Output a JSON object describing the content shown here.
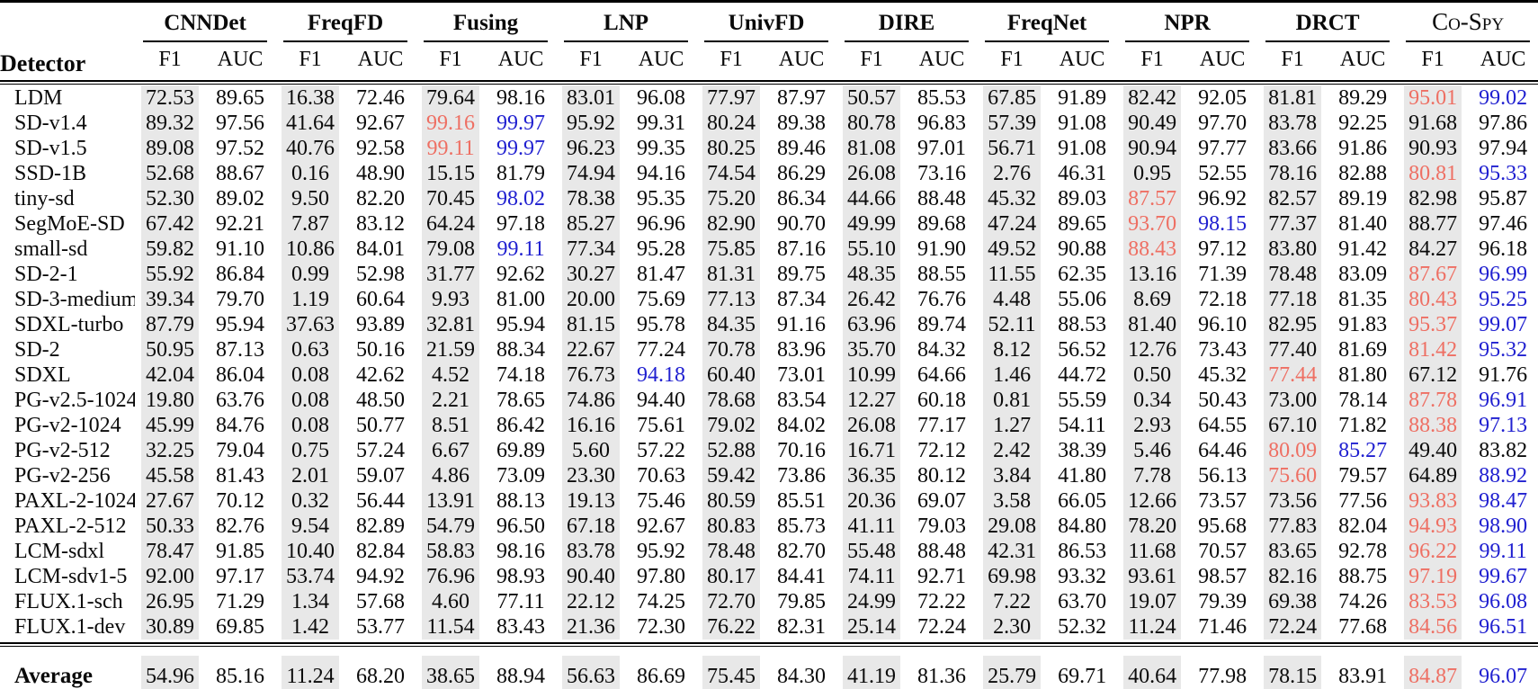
{
  "colors": {
    "best_f1_highlight": "#ee6f63",
    "best_auc_highlight": "#2020d0",
    "f1_column_background": "#e8e8e8"
  },
  "table": {
    "detector_header": "Detector",
    "metric_headers": [
      "F1",
      "AUC"
    ],
    "method_groups": [
      {
        "label": "CNNDet"
      },
      {
        "label": "FreqFD"
      },
      {
        "label": "Fusing"
      },
      {
        "label": "LNP"
      },
      {
        "label": "UnivFD"
      },
      {
        "label": "DIRE"
      },
      {
        "label": "FreqNet"
      },
      {
        "label": "NPR"
      },
      {
        "label": "DRCT"
      },
      {
        "label": "Co-Spy",
        "smallcaps": true
      }
    ],
    "rows": [
      {
        "label": "LDM",
        "values": [
          "72.53",
          "89.65",
          "16.38",
          "72.46",
          "79.64",
          "98.16",
          "83.01",
          "96.08",
          "77.97",
          "87.97",
          "50.57",
          "85.53",
          "67.85",
          "91.89",
          "82.42",
          "92.05",
          "81.81",
          "89.29",
          "95.01",
          "99.02"
        ],
        "red": [
          18
        ],
        "blue": [
          19
        ]
      },
      {
        "label": "SD-v1.4",
        "values": [
          "89.32",
          "97.56",
          "41.64",
          "92.67",
          "99.16",
          "99.97",
          "95.92",
          "99.31",
          "80.24",
          "89.38",
          "80.78",
          "96.83",
          "57.39",
          "91.08",
          "90.49",
          "97.70",
          "83.78",
          "92.25",
          "91.68",
          "97.86"
        ],
        "red": [
          4
        ],
        "blue": [
          5
        ]
      },
      {
        "label": "SD-v1.5",
        "values": [
          "89.08",
          "97.52",
          "40.76",
          "92.58",
          "99.11",
          "99.97",
          "96.23",
          "99.35",
          "80.25",
          "89.46",
          "81.08",
          "97.01",
          "56.71",
          "91.08",
          "90.94",
          "97.77",
          "83.66",
          "91.86",
          "90.93",
          "97.94"
        ],
        "red": [
          4
        ],
        "blue": [
          5
        ]
      },
      {
        "label": "SSD-1B",
        "values": [
          "52.68",
          "88.67",
          "0.16",
          "48.90",
          "15.15",
          "81.79",
          "74.94",
          "94.16",
          "74.54",
          "86.29",
          "26.08",
          "73.16",
          "2.76",
          "46.31",
          "0.95",
          "52.55",
          "78.16",
          "82.88",
          "80.81",
          "95.33"
        ],
        "red": [
          18
        ],
        "blue": [
          19
        ]
      },
      {
        "label": "tiny-sd",
        "values": [
          "52.30",
          "89.02",
          "9.50",
          "82.20",
          "70.45",
          "98.02",
          "78.38",
          "95.35",
          "75.20",
          "86.34",
          "44.66",
          "88.48",
          "45.32",
          "89.03",
          "87.57",
          "96.92",
          "82.57",
          "89.19",
          "82.98",
          "95.87"
        ],
        "red": [
          14
        ],
        "blue": [
          5
        ]
      },
      {
        "label": "SegMoE-SD",
        "values": [
          "67.42",
          "92.21",
          "7.87",
          "83.12",
          "64.24",
          "97.18",
          "85.27",
          "96.96",
          "82.90",
          "90.70",
          "49.99",
          "89.68",
          "47.24",
          "89.65",
          "93.70",
          "98.15",
          "77.37",
          "81.40",
          "88.77",
          "97.46"
        ],
        "red": [
          14
        ],
        "blue": [
          15
        ]
      },
      {
        "label": "small-sd",
        "values": [
          "59.82",
          "91.10",
          "10.86",
          "84.01",
          "79.08",
          "99.11",
          "77.34",
          "95.28",
          "75.85",
          "87.16",
          "55.10",
          "91.90",
          "49.52",
          "90.88",
          "88.43",
          "97.12",
          "83.80",
          "91.42",
          "84.27",
          "96.18"
        ],
        "red": [
          14
        ],
        "blue": [
          5
        ]
      },
      {
        "label": "SD-2-1",
        "values": [
          "55.92",
          "86.84",
          "0.99",
          "52.98",
          "31.77",
          "92.62",
          "30.27",
          "81.47",
          "81.31",
          "89.75",
          "48.35",
          "88.55",
          "11.55",
          "62.35",
          "13.16",
          "71.39",
          "78.48",
          "83.09",
          "87.67",
          "96.99"
        ],
        "red": [
          18
        ],
        "blue": [
          19
        ]
      },
      {
        "label": "SD-3-medium",
        "values": [
          "39.34",
          "79.70",
          "1.19",
          "60.64",
          "9.93",
          "81.00",
          "20.00",
          "75.69",
          "77.13",
          "87.34",
          "26.42",
          "76.76",
          "4.48",
          "55.06",
          "8.69",
          "72.18",
          "77.18",
          "81.35",
          "80.43",
          "95.25"
        ],
        "red": [
          18
        ],
        "blue": [
          19
        ]
      },
      {
        "label": "SDXL-turbo",
        "values": [
          "87.79",
          "95.94",
          "37.63",
          "93.89",
          "32.81",
          "95.94",
          "81.15",
          "95.78",
          "84.35",
          "91.16",
          "63.96",
          "89.74",
          "52.11",
          "88.53",
          "81.40",
          "96.10",
          "82.95",
          "91.83",
          "95.37",
          "99.07"
        ],
        "red": [
          18
        ],
        "blue": [
          19
        ]
      },
      {
        "label": "SD-2",
        "values": [
          "50.95",
          "87.13",
          "0.63",
          "50.16",
          "21.59",
          "88.34",
          "22.67",
          "77.24",
          "70.78",
          "83.96",
          "35.70",
          "84.32",
          "8.12",
          "56.52",
          "12.76",
          "73.43",
          "77.40",
          "81.69",
          "81.42",
          "95.32"
        ],
        "red": [
          18
        ],
        "blue": [
          19
        ]
      },
      {
        "label": "SDXL",
        "values": [
          "42.04",
          "86.04",
          "0.08",
          "42.62",
          "4.52",
          "74.18",
          "76.73",
          "94.18",
          "60.40",
          "73.01",
          "10.99",
          "64.66",
          "1.46",
          "44.72",
          "0.50",
          "45.32",
          "77.44",
          "81.80",
          "67.12",
          "91.76"
        ],
        "red": [
          16
        ],
        "blue": [
          7
        ]
      },
      {
        "label": "PG-v2.5-1024",
        "values": [
          "19.80",
          "63.76",
          "0.08",
          "48.50",
          "2.21",
          "78.65",
          "74.86",
          "94.40",
          "78.68",
          "83.54",
          "12.27",
          "60.18",
          "0.81",
          "55.59",
          "0.34",
          "50.43",
          "73.00",
          "78.14",
          "87.78",
          "96.91"
        ],
        "red": [
          18
        ],
        "blue": [
          19
        ]
      },
      {
        "label": "PG-v2-1024",
        "values": [
          "45.99",
          "84.76",
          "0.08",
          "50.77",
          "8.51",
          "86.42",
          "16.16",
          "75.61",
          "79.02",
          "84.02",
          "26.08",
          "77.17",
          "1.27",
          "54.11",
          "2.93",
          "64.55",
          "67.10",
          "71.82",
          "88.38",
          "97.13"
        ],
        "red": [
          18
        ],
        "blue": [
          19
        ]
      },
      {
        "label": "PG-v2-512",
        "values": [
          "32.25",
          "79.04",
          "0.75",
          "57.24",
          "6.67",
          "69.89",
          "5.60",
          "57.22",
          "52.88",
          "70.16",
          "16.71",
          "72.12",
          "2.42",
          "38.39",
          "5.46",
          "64.46",
          "80.09",
          "85.27",
          "49.40",
          "83.82"
        ],
        "red": [
          16
        ],
        "blue": [
          17
        ]
      },
      {
        "label": "PG-v2-256",
        "values": [
          "45.58",
          "81.43",
          "2.01",
          "59.07",
          "4.86",
          "73.09",
          "23.30",
          "70.63",
          "59.42",
          "73.86",
          "36.35",
          "80.12",
          "3.84",
          "41.80",
          "7.78",
          "56.13",
          "75.60",
          "79.57",
          "64.89",
          "88.92"
        ],
        "red": [
          16
        ],
        "blue": [
          19
        ]
      },
      {
        "label": "PAXL-2-1024",
        "values": [
          "27.67",
          "70.12",
          "0.32",
          "56.44",
          "13.91",
          "88.13",
          "19.13",
          "75.46",
          "80.59",
          "85.51",
          "20.36",
          "69.07",
          "3.58",
          "66.05",
          "12.66",
          "73.57",
          "73.56",
          "77.56",
          "93.83",
          "98.47"
        ],
        "red": [
          18
        ],
        "blue": [
          19
        ]
      },
      {
        "label": "PAXL-2-512",
        "values": [
          "50.33",
          "82.76",
          "9.54",
          "82.89",
          "54.79",
          "96.50",
          "67.18",
          "92.67",
          "80.83",
          "85.73",
          "41.11",
          "79.03",
          "29.08",
          "84.80",
          "78.20",
          "95.68",
          "77.83",
          "82.04",
          "94.93",
          "98.90"
        ],
        "red": [
          18
        ],
        "blue": [
          19
        ]
      },
      {
        "label": "LCM-sdxl",
        "values": [
          "78.47",
          "91.85",
          "10.40",
          "82.84",
          "58.83",
          "98.16",
          "83.78",
          "95.92",
          "78.48",
          "82.70",
          "55.48",
          "88.48",
          "42.31",
          "86.53",
          "11.68",
          "70.57",
          "83.65",
          "92.78",
          "96.22",
          "99.11"
        ],
        "red": [
          18
        ],
        "blue": [
          19
        ]
      },
      {
        "label": "LCM-sdv1-5",
        "values": [
          "92.00",
          "97.17",
          "53.74",
          "94.92",
          "76.96",
          "98.93",
          "90.40",
          "97.80",
          "80.17",
          "84.41",
          "74.11",
          "92.71",
          "69.98",
          "93.32",
          "93.61",
          "98.57",
          "82.16",
          "88.75",
          "97.19",
          "99.67"
        ],
        "red": [
          18
        ],
        "blue": [
          19
        ]
      },
      {
        "label": "FLUX.1-sch",
        "values": [
          "26.95",
          "71.29",
          "1.34",
          "57.68",
          "4.60",
          "77.11",
          "22.12",
          "74.25",
          "72.70",
          "79.85",
          "24.99",
          "72.22",
          "7.22",
          "63.70",
          "19.07",
          "79.39",
          "69.38",
          "74.26",
          "83.53",
          "96.08"
        ],
        "red": [
          18
        ],
        "blue": [
          19
        ]
      },
      {
        "label": "FLUX.1-dev",
        "values": [
          "30.89",
          "69.85",
          "1.42",
          "53.77",
          "11.54",
          "83.43",
          "21.36",
          "72.30",
          "76.22",
          "82.31",
          "25.14",
          "72.24",
          "2.30",
          "52.32",
          "11.24",
          "71.46",
          "72.24",
          "77.68",
          "84.56",
          "96.51"
        ],
        "red": [
          18
        ],
        "blue": [
          19
        ]
      }
    ],
    "average_row": {
      "label": "Average",
      "values": [
        "54.96",
        "85.16",
        "11.24",
        "68.20",
        "38.65",
        "88.94",
        "56.63",
        "86.69",
        "75.45",
        "84.30",
        "41.19",
        "81.36",
        "25.79",
        "69.71",
        "40.64",
        "77.98",
        "78.15",
        "83.91",
        "84.87",
        "96.07"
      ],
      "red": [
        18
      ],
      "blue": [
        19
      ]
    }
  }
}
